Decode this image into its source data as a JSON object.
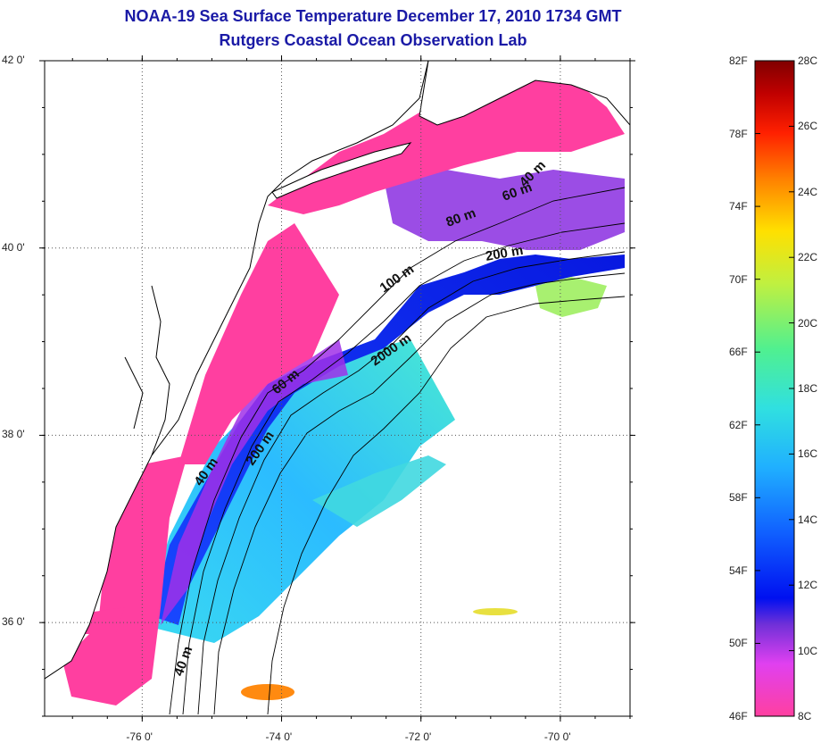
{
  "title": {
    "line1": "NOAA-19 Sea Surface Temperature December 17, 2010 1734 GMT",
    "line2": "Rutgers Coastal Ocean Observation Lab"
  },
  "axes": {
    "latitude_ticks": [
      {
        "value": 42,
        "label": "42 0'"
      },
      {
        "value": 40,
        "label": "40 0'"
      },
      {
        "value": 38,
        "label": "38 0'"
      },
      {
        "value": 36,
        "label": "36 0'"
      }
    ],
    "longitude_ticks": [
      {
        "value": -76,
        "label": "-76 0'"
      },
      {
        "value": -74,
        "label": "-74 0'"
      },
      {
        "value": -72,
        "label": "-72 0'"
      },
      {
        "value": -70,
        "label": "-70 0'"
      }
    ],
    "lon_range": [
      -77.4,
      -69.0
    ],
    "lat_range": [
      35.0,
      42.0
    ],
    "grid": "dotted"
  },
  "contours": [
    {
      "label": "40 m"
    },
    {
      "label": "60 m"
    },
    {
      "label": "80 m"
    },
    {
      "label": "200 m"
    },
    {
      "label": "100 m"
    },
    {
      "label": "2000 m"
    },
    {
      "label": "60 m"
    },
    {
      "label": "40 m"
    },
    {
      "label": "200 m"
    },
    {
      "label": "40 m"
    }
  ],
  "colorbar": {
    "fahrenheit": [
      "82F",
      "78F",
      "74F",
      "70F",
      "66F",
      "62F",
      "58F",
      "54F",
      "50F",
      "46F"
    ],
    "celsius": [
      "28C",
      "26C",
      "24C",
      "22C",
      "20C",
      "18C",
      "16C",
      "14C",
      "12C",
      "10C",
      "8C"
    ],
    "range_c": [
      8,
      28
    ],
    "colors": [
      "#ff40a0",
      "#e040f0",
      "#7030d8",
      "#0010f0",
      "#1060ff",
      "#20b0ff",
      "#30e0e0",
      "#50f090",
      "#c0f040",
      "#ffe000",
      "#ff8000",
      "#ff2000",
      "#c00000",
      "#800000"
    ]
  },
  "colors": {
    "land": "#ffffff",
    "coast": "#000000",
    "cold_shelf": "#ff3fa0",
    "gulf_stream": "#30e0e0",
    "title": "#1a1aa6"
  }
}
